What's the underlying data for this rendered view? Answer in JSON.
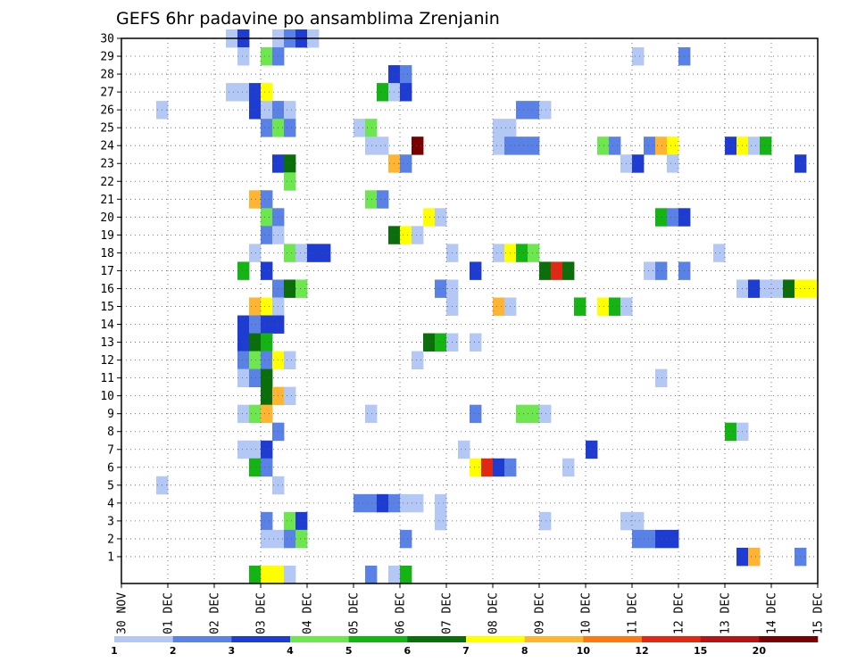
{
  "chart_data": {
    "type": "heatmap",
    "title": "GEFS 6hr padavine po ansamblima Zrenjanin",
    "xlabel": "",
    "ylabel": "",
    "x_unit": "6-hour step",
    "x_range": [
      0,
      60
    ],
    "y_range": [
      0,
      30
    ],
    "y_ticks": [
      "1",
      "2",
      "3",
      "4",
      "5",
      "6",
      "7",
      "8",
      "9",
      "10",
      "11",
      "12",
      "13",
      "14",
      "15",
      "16",
      "17",
      "18",
      "19",
      "20",
      "21",
      "22",
      "23",
      "24",
      "25",
      "26",
      "27",
      "28",
      "29",
      "30"
    ],
    "x_ticks": [
      "30 NOV",
      "01 DEC",
      "02 DEC",
      "03 DEC",
      "04 DEC",
      "05 DEC",
      "06 DEC",
      "07 DEC",
      "08 DEC",
      "09 DEC",
      "10 DEC",
      "11 DEC",
      "12 DEC",
      "13 DEC",
      "14 DEC",
      "15 DEC"
    ],
    "grid": true,
    "legend": {
      "position": "bottom",
      "labels": [
        "1",
        "2",
        "3",
        "4",
        "5",
        "6",
        "7",
        "8",
        "10",
        "12",
        "15",
        "20"
      ],
      "colors": [
        "#b4c8f6",
        "#5a82e6",
        "#1e3cd2",
        "#6ee650",
        "#14b414",
        "#0a6e0a",
        "#ffff00",
        "#ffb432",
        "#ff7814",
        "#e12814",
        "#b41414",
        "#780000"
      ]
    },
    "cells": [
      [
        30,
        9,
        0
      ],
      [
        30,
        10,
        2
      ],
      [
        30,
        13,
        0
      ],
      [
        30,
        14,
        1
      ],
      [
        30,
        15,
        2
      ],
      [
        30,
        16,
        0
      ],
      [
        29,
        10,
        0
      ],
      [
        29,
        12,
        3
      ],
      [
        29,
        13,
        1
      ],
      [
        29,
        44,
        0
      ],
      [
        29,
        48,
        1
      ],
      [
        28,
        23,
        2
      ],
      [
        28,
        24,
        1
      ],
      [
        27,
        9,
        0
      ],
      [
        27,
        10,
        0
      ],
      [
        27,
        11,
        2
      ],
      [
        27,
        12,
        6
      ],
      [
        27,
        22,
        4
      ],
      [
        27,
        23,
        0
      ],
      [
        27,
        24,
        2
      ],
      [
        26,
        3,
        0
      ],
      [
        26,
        11,
        2
      ],
      [
        26,
        12,
        0
      ],
      [
        26,
        13,
        1
      ],
      [
        26,
        14,
        0
      ],
      [
        26,
        34,
        1
      ],
      [
        26,
        35,
        1
      ],
      [
        26,
        36,
        0
      ],
      [
        25,
        12,
        1
      ],
      [
        25,
        13,
        3
      ],
      [
        25,
        14,
        1
      ],
      [
        25,
        20,
        0
      ],
      [
        25,
        21,
        3
      ],
      [
        25,
        32,
        0
      ],
      [
        25,
        33,
        0
      ],
      [
        24,
        21,
        0
      ],
      [
        24,
        22,
        0
      ],
      [
        24,
        25,
        11
      ],
      [
        24,
        32,
        0
      ],
      [
        24,
        33,
        1
      ],
      [
        24,
        34,
        1
      ],
      [
        24,
        35,
        1
      ],
      [
        24,
        41,
        3
      ],
      [
        24,
        42,
        1
      ],
      [
        24,
        45,
        1
      ],
      [
        24,
        46,
        7
      ],
      [
        24,
        47,
        6
      ],
      [
        24,
        52,
        2
      ],
      [
        24,
        53,
        6
      ],
      [
        24,
        54,
        0
      ],
      [
        24,
        55,
        4
      ],
      [
        23,
        13,
        2
      ],
      [
        23,
        14,
        5
      ],
      [
        23,
        23,
        7
      ],
      [
        23,
        24,
        1
      ],
      [
        23,
        43,
        0
      ],
      [
        23,
        44,
        2
      ],
      [
        23,
        47,
        0
      ],
      [
        23,
        58,
        2
      ],
      [
        22,
        14,
        3
      ],
      [
        21,
        11,
        7
      ],
      [
        21,
        12,
        1
      ],
      [
        21,
        21,
        3
      ],
      [
        21,
        22,
        1
      ],
      [
        20,
        12,
        3
      ],
      [
        20,
        13,
        1
      ],
      [
        20,
        26,
        6
      ],
      [
        20,
        27,
        0
      ],
      [
        20,
        46,
        4
      ],
      [
        20,
        47,
        1
      ],
      [
        20,
        48,
        2
      ],
      [
        19,
        12,
        1
      ],
      [
        19,
        13,
        0
      ],
      [
        19,
        23,
        5
      ],
      [
        19,
        24,
        6
      ],
      [
        19,
        25,
        0
      ],
      [
        18,
        11,
        0
      ],
      [
        18,
        14,
        3
      ],
      [
        18,
        15,
        0
      ],
      [
        18,
        16,
        2
      ],
      [
        18,
        17,
        2
      ],
      [
        18,
        28,
        0
      ],
      [
        18,
        32,
        0
      ],
      [
        18,
        33,
        6
      ],
      [
        18,
        34,
        4
      ],
      [
        18,
        35,
        3
      ],
      [
        18,
        51,
        0
      ],
      [
        17,
        10,
        4
      ],
      [
        17,
        12,
        2
      ],
      [
        17,
        30,
        2
      ],
      [
        17,
        36,
        5
      ],
      [
        17,
        37,
        9
      ],
      [
        17,
        38,
        5
      ],
      [
        17,
        45,
        0
      ],
      [
        17,
        46,
        1
      ],
      [
        17,
        48,
        1
      ],
      [
        16,
        13,
        1
      ],
      [
        16,
        14,
        5
      ],
      [
        16,
        15,
        3
      ],
      [
        16,
        27,
        1
      ],
      [
        16,
        28,
        0
      ],
      [
        16,
        53,
        0
      ],
      [
        16,
        54,
        2
      ],
      [
        16,
        55,
        0
      ],
      [
        16,
        56,
        0
      ],
      [
        16,
        57,
        5
      ],
      [
        16,
        58,
        6
      ],
      [
        16,
        59,
        6
      ],
      [
        15,
        11,
        7
      ],
      [
        15,
        12,
        6
      ],
      [
        15,
        13,
        0
      ],
      [
        15,
        28,
        0
      ],
      [
        15,
        32,
        7
      ],
      [
        15,
        33,
        0
      ],
      [
        15,
        39,
        4
      ],
      [
        15,
        41,
        6
      ],
      [
        15,
        42,
        4
      ],
      [
        15,
        43,
        0
      ],
      [
        14,
        10,
        2
      ],
      [
        14,
        11,
        1
      ],
      [
        14,
        12,
        2
      ],
      [
        14,
        13,
        2
      ],
      [
        13,
        10,
        2
      ],
      [
        13,
        11,
        5
      ],
      [
        13,
        12,
        4
      ],
      [
        13,
        26,
        5
      ],
      [
        13,
        27,
        4
      ],
      [
        13,
        28,
        0
      ],
      [
        13,
        30,
        0
      ],
      [
        12,
        10,
        1
      ],
      [
        12,
        11,
        3
      ],
      [
        12,
        12,
        1
      ],
      [
        12,
        13,
        6
      ],
      [
        12,
        14,
        0
      ],
      [
        12,
        25,
        0
      ],
      [
        11,
        10,
        0
      ],
      [
        11,
        11,
        1
      ],
      [
        11,
        12,
        5
      ],
      [
        11,
        46,
        0
      ],
      [
        10,
        12,
        5
      ],
      [
        10,
        13,
        7
      ],
      [
        10,
        14,
        0
      ],
      [
        9,
        10,
        0
      ],
      [
        9,
        11,
        3
      ],
      [
        9,
        12,
        7
      ],
      [
        9,
        21,
        0
      ],
      [
        9,
        30,
        1
      ],
      [
        9,
        34,
        3
      ],
      [
        9,
        35,
        3
      ],
      [
        9,
        36,
        0
      ],
      [
        8,
        13,
        1
      ],
      [
        8,
        52,
        4
      ],
      [
        8,
        53,
        0
      ],
      [
        7,
        10,
        0
      ],
      [
        7,
        11,
        0
      ],
      [
        7,
        12,
        2
      ],
      [
        7,
        29,
        0
      ],
      [
        7,
        40,
        2
      ],
      [
        6,
        11,
        4
      ],
      [
        6,
        12,
        1
      ],
      [
        6,
        30,
        6
      ],
      [
        6,
        31,
        9
      ],
      [
        6,
        32,
        2
      ],
      [
        6,
        33,
        1
      ],
      [
        6,
        38,
        0
      ],
      [
        5,
        3,
        0
      ],
      [
        5,
        13,
        0
      ],
      [
        4,
        20,
        1
      ],
      [
        4,
        21,
        1
      ],
      [
        4,
        22,
        2
      ],
      [
        4,
        23,
        1
      ],
      [
        4,
        24,
        0
      ],
      [
        4,
        25,
        0
      ],
      [
        4,
        27,
        0
      ],
      [
        3,
        12,
        1
      ],
      [
        3,
        14,
        3
      ],
      [
        3,
        15,
        2
      ],
      [
        3,
        27,
        0
      ],
      [
        3,
        36,
        0
      ],
      [
        3,
        43,
        0
      ],
      [
        3,
        44,
        0
      ],
      [
        2,
        12,
        0
      ],
      [
        2,
        13,
        0
      ],
      [
        2,
        14,
        1
      ],
      [
        2,
        15,
        3
      ],
      [
        2,
        24,
        1
      ],
      [
        2,
        44,
        1
      ],
      [
        2,
        45,
        1
      ],
      [
        2,
        46,
        2
      ],
      [
        2,
        47,
        2
      ],
      [
        1,
        53,
        2
      ],
      [
        1,
        54,
        7
      ],
      [
        1,
        58,
        1
      ],
      [
        0,
        11,
        4
      ],
      [
        0,
        12,
        6
      ],
      [
        0,
        13,
        6
      ],
      [
        0,
        14,
        0
      ],
      [
        0,
        21,
        1
      ],
      [
        0,
        23,
        0
      ],
      [
        0,
        24,
        4
      ]
    ]
  }
}
